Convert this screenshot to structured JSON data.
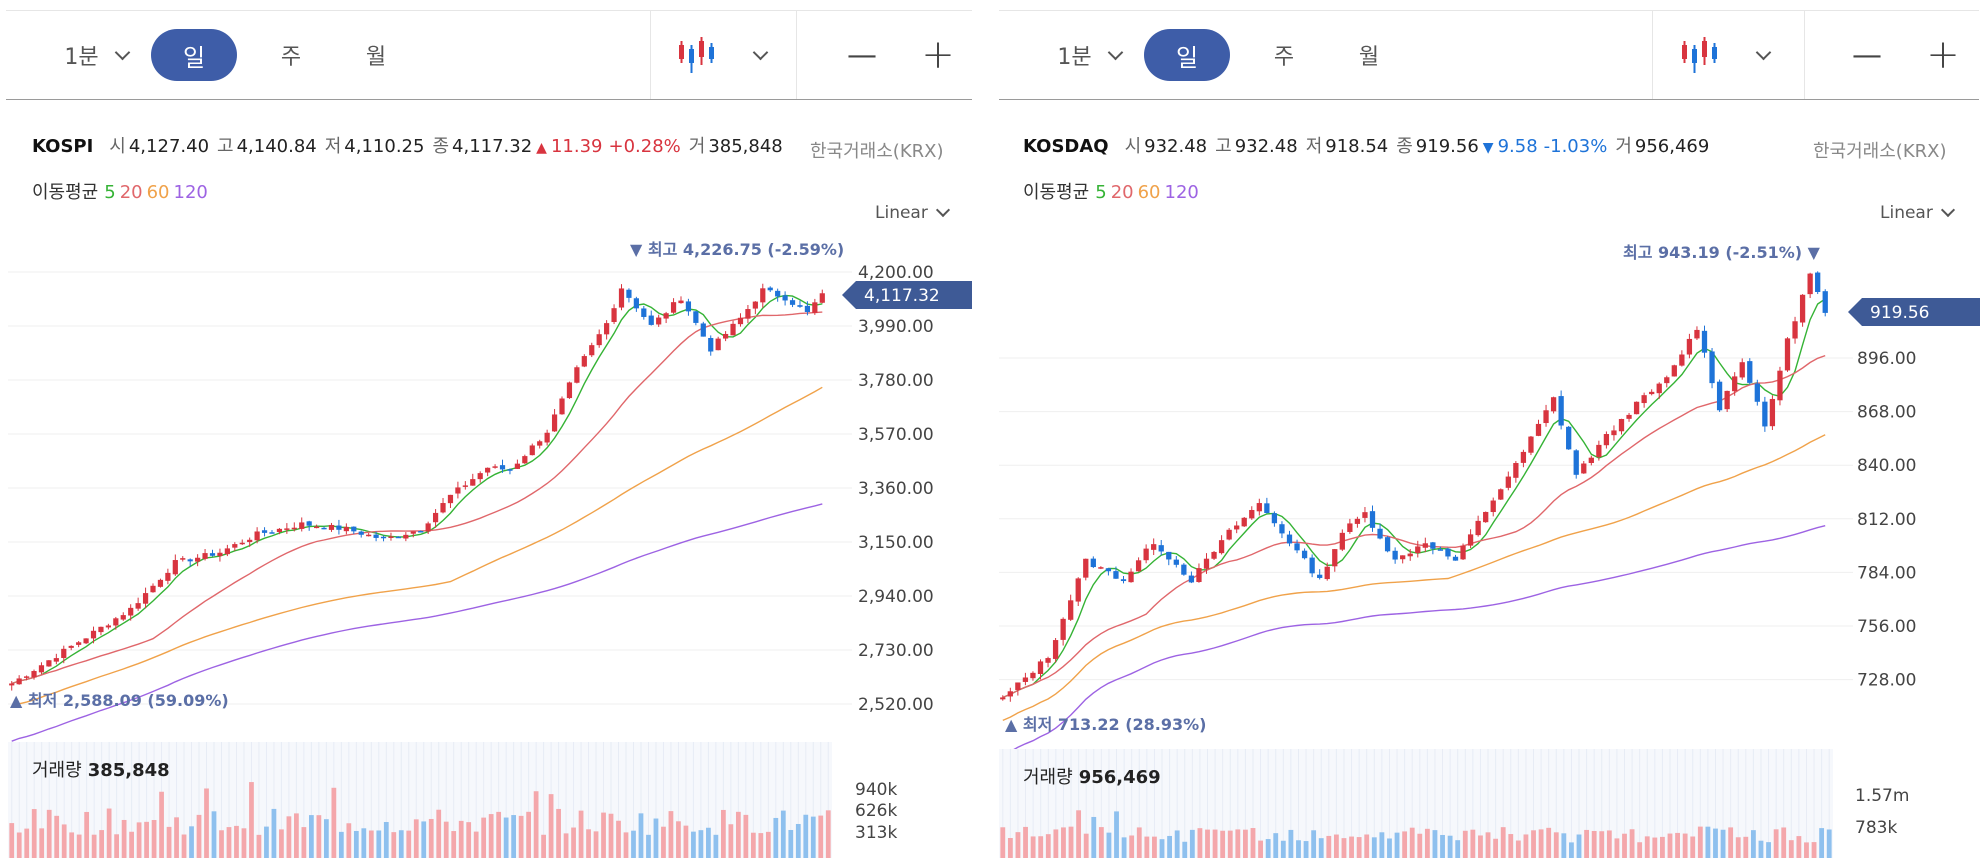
{
  "panels": [
    {
      "toolbar": {
        "interval": "1분",
        "tabs": [
          "일",
          "주",
          "월"
        ],
        "zoom_out": "—",
        "zoom_in": "+"
      },
      "symbol": "KOSPI",
      "quote": {
        "open_label": "시",
        "open": "4,127.40",
        "high_label": "고",
        "high": "4,140.84",
        "low_label": "저",
        "low": "4,110.25",
        "close_label": "종",
        "close": "4,117.32",
        "change_arrow": "▲",
        "change": "11.39",
        "change_pct": "+0.28%",
        "volume_label": "거",
        "volume": "385,848"
      },
      "exchange": "한국거래소(KRX)",
      "ma_label": "이동평균",
      "ma_periods": [
        "5",
        "20",
        "60",
        "120"
      ],
      "scale": "Linear",
      "price_axis": [
        "4,200.00",
        "3,990.00",
        "3,780.00",
        "3,570.00",
        "3,360.00",
        "3,150.00",
        "2,940.00",
        "2,730.00",
        "2,520.00"
      ],
      "current_price": "4,117.32",
      "max_label": "▼ 최고",
      "max_value": "4,226.75 (-2.59%)",
      "min_label": "▲ 최저",
      "min_value": "2,588.09 (59.09%)",
      "volume_title": "거래량",
      "volume_value": "385,848",
      "volume_axis": [
        "940k",
        "626k",
        "313k"
      ]
    },
    {
      "toolbar": {
        "interval": "1분",
        "tabs": [
          "일",
          "주",
          "월"
        ],
        "zoom_out": "—",
        "zoom_in": "+"
      },
      "symbol": "KOSDAQ",
      "quote": {
        "open_label": "시",
        "open": "932.48",
        "high_label": "고",
        "high": "932.48",
        "low_label": "저",
        "low": "918.54",
        "close_label": "종",
        "close": "919.56",
        "change_arrow": "▼",
        "change": "9.58",
        "change_pct": "-1.03%",
        "volume_label": "거",
        "volume": "956,469"
      },
      "exchange": "한국거래소(KRX)",
      "ma_label": "이동평균",
      "ma_periods": [
        "5",
        "20",
        "60",
        "120"
      ],
      "scale": "Linear",
      "price_axis": [
        "896.00",
        "868.00",
        "840.00",
        "812.00",
        "784.00",
        "756.00",
        "728.00"
      ],
      "current_price": "919.56",
      "max_label": "최고",
      "max_value": "943.19 (-2.51%) ▼",
      "min_label": "▲ 최저",
      "min_value": "713.22 (28.93%)",
      "volume_title": "거래량",
      "volume_value": "956,469",
      "volume_axis": [
        "1.57m",
        "783k"
      ]
    }
  ],
  "colors": {
    "accent": "#3e5da8",
    "up": "#d8343f",
    "down": "#1e73d8",
    "ma5": "#35b335",
    "ma20": "#e0676b",
    "ma60": "#f0a24a",
    "ma120": "#9d63e3",
    "vol_up": "#f4a7ab",
    "vol_down": "#8ec0ee",
    "annotation": "#5b6fa6"
  },
  "chart_data": [
    {
      "type": "candlestick",
      "title": "KOSPI",
      "scale": "linear",
      "ylim": [
        2450,
        4320
      ],
      "grid": true,
      "n_candles": 110,
      "close_keypoints": [
        [
          0,
          2600
        ],
        [
          10,
          2780
        ],
        [
          16,
          2890
        ],
        [
          22,
          3070
        ],
        [
          28,
          3110
        ],
        [
          33,
          3180
        ],
        [
          39,
          3220
        ],
        [
          45,
          3200
        ],
        [
          50,
          3160
        ],
        [
          55,
          3200
        ],
        [
          59,
          3330
        ],
        [
          64,
          3440
        ],
        [
          67,
          3430
        ],
        [
          72,
          3580
        ],
        [
          76,
          3820
        ],
        [
          80,
          4000
        ],
        [
          82,
          4140
        ],
        [
          86,
          3990
        ],
        [
          90,
          4100
        ],
        [
          94,
          3900
        ],
        [
          98,
          4020
        ],
        [
          101,
          4130
        ],
        [
          104,
          4100
        ],
        [
          107,
          4040
        ],
        [
          109,
          4117
        ]
      ],
      "high": 4226.75,
      "low": 2588.09,
      "last": 4117.32,
      "moving_averages": [
        "5",
        "20",
        "60",
        "120"
      ],
      "volume": {
        "last": 385848,
        "axis_ticks": [
          "940k",
          "626k",
          "313k"
        ]
      }
    },
    {
      "type": "candlestick",
      "title": "KOSDAQ",
      "scale": "linear",
      "ylim": [
        708,
        958
      ],
      "grid": true,
      "n_candles": 110,
      "close_keypoints": [
        [
          0,
          718
        ],
        [
          6,
          740
        ],
        [
          11,
          790
        ],
        [
          16,
          780
        ],
        [
          20,
          800
        ],
        [
          25,
          780
        ],
        [
          30,
          805
        ],
        [
          34,
          820
        ],
        [
          38,
          800
        ],
        [
          42,
          780
        ],
        [
          45,
          805
        ],
        [
          48,
          815
        ],
        [
          52,
          790
        ],
        [
          56,
          800
        ],
        [
          60,
          790
        ],
        [
          63,
          810
        ],
        [
          68,
          840
        ],
        [
          73,
          875
        ],
        [
          76,
          835
        ],
        [
          80,
          855
        ],
        [
          84,
          872
        ],
        [
          88,
          885
        ],
        [
          92,
          912
        ],
        [
          95,
          870
        ],
        [
          98,
          895
        ],
        [
          101,
          860
        ],
        [
          104,
          905
        ],
        [
          107,
          940
        ],
        [
          109,
          919.56
        ]
      ],
      "high": 943.19,
      "low": 713.22,
      "last": 919.56,
      "moving_averages": [
        "5",
        "20",
        "60",
        "120"
      ],
      "volume": {
        "last": 956469,
        "axis_ticks": [
          "1.57m",
          "783k"
        ]
      }
    }
  ]
}
